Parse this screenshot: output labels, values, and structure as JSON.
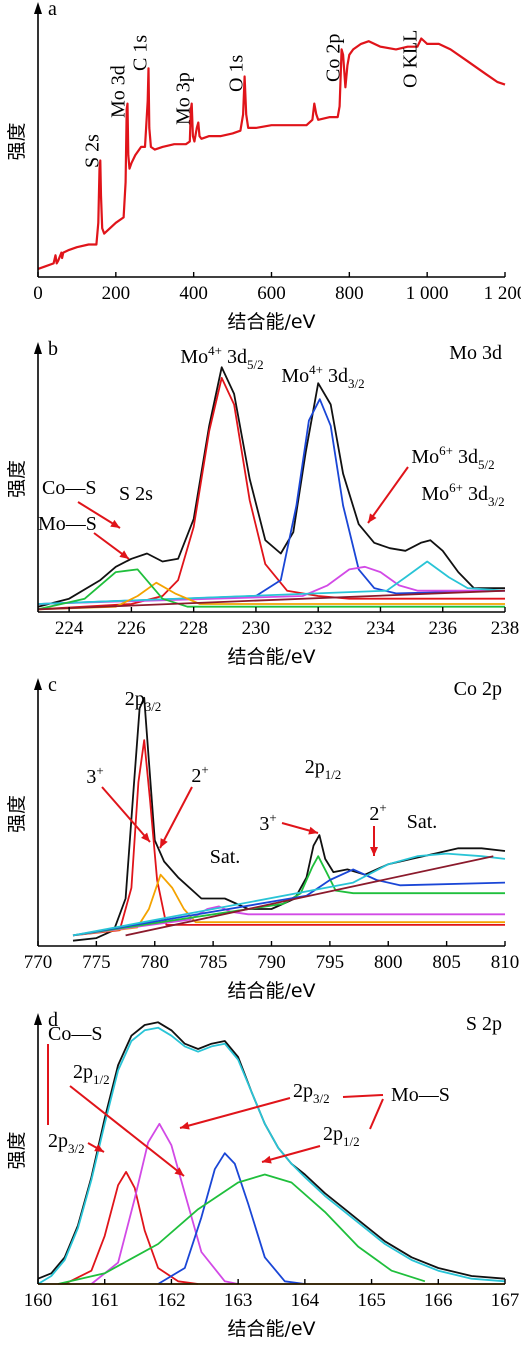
{
  "chart_data": [
    {
      "panel": "a",
      "type": "line",
      "xlabel": "结合能/eV",
      "ylabel": "强度",
      "xlim": [
        0,
        1200
      ],
      "ylim": [
        0,
        100
      ],
      "xticks": [
        0,
        200,
        400,
        600,
        800,
        1000,
        1200
      ],
      "xtick_labels": [
        "0",
        "200",
        "400",
        "600",
        "800",
        "1 000",
        "1 200"
      ],
      "peak_labels": [
        {
          "text": "S 2s",
          "x": 160
        },
        {
          "text": "Mo 3d",
          "x": 228
        },
        {
          "text": "C 1s",
          "x": 284
        },
        {
          "text": "Mo 3p",
          "x": 395
        },
        {
          "text": "O 1s",
          "x": 531
        },
        {
          "text": "Co 2p",
          "x": 780
        },
        {
          "text": "O KLL",
          "x": 978
        }
      ],
      "series": [
        {
          "color": "#e0141a",
          "x": [
            0,
            20,
            40,
            45,
            48,
            52,
            60,
            62,
            65,
            80,
            100,
            130,
            150,
            155,
            158,
            160,
            162,
            165,
            170,
            200,
            220,
            225,
            228,
            230,
            232,
            235,
            240,
            250,
            265,
            275,
            282,
            284,
            286,
            290,
            300,
            320,
            350,
            380,
            390,
            393,
            395,
            398,
            402,
            408,
            412,
            415,
            420,
            440,
            470,
            500,
            520,
            527,
            531,
            535,
            540,
            560,
            600,
            650,
            690,
            705,
            710,
            715,
            720,
            750,
            770,
            775,
            780,
            784,
            790,
            795,
            800,
            810,
            830,
            850,
            880,
            920,
            950,
            975,
            985,
            1000,
            1030,
            1060,
            1100,
            1150,
            1180,
            1200
          ],
          "y": [
            3,
            4,
            5,
            8,
            5,
            6,
            9,
            7,
            9,
            10,
            11,
            12,
            12,
            20,
            40,
            43,
            30,
            18,
            16,
            20,
            22,
            35,
            62,
            64,
            45,
            40,
            42,
            45,
            48,
            48,
            65,
            77,
            55,
            48,
            47,
            48,
            49,
            49,
            50,
            62,
            64,
            52,
            50,
            55,
            57,
            52,
            51,
            52,
            52,
            53,
            54,
            60,
            74,
            60,
            55,
            55,
            56,
            56,
            56,
            58,
            64,
            60,
            58,
            59,
            59,
            63,
            84,
            82,
            70,
            78,
            82,
            84,
            86,
            87,
            85,
            84,
            85,
            85,
            88,
            86,
            86,
            84,
            80,
            75,
            72,
            71
          ]
        }
      ]
    },
    {
      "panel": "b",
      "type": "line",
      "title": "Mo 3d",
      "xlabel": "结合能/eV",
      "ylabel": "强度",
      "xlim": [
        223,
        238
      ],
      "ylim": [
        0,
        100
      ],
      "xticks": [
        224,
        226,
        228,
        230,
        232,
        234,
        236,
        238
      ],
      "annotations": [
        {
          "base": "Mo",
          "sup": "4+",
          "rest": " 3d",
          "sub": "5/2"
        },
        {
          "base": "Mo",
          "sup": "4+",
          "rest": " 3d",
          "sub": "3/2"
        },
        {
          "base": "Mo",
          "sup": "6+",
          "rest": " 3d",
          "sub": "5/2"
        },
        {
          "base": "Mo",
          "sup": "6+",
          "rest": " 3d",
          "sub": "3/2"
        },
        {
          "text": "Co—S"
        },
        {
          "text": "S 2s"
        },
        {
          "text": "Mo—S"
        }
      ],
      "series": [
        {
          "color": "#111111",
          "x": [
            223,
            224,
            225,
            225.5,
            226,
            226.5,
            227,
            227.5,
            228,
            228.5,
            228.9,
            229.3,
            229.8,
            230.3,
            230.8,
            231.2,
            231.6,
            232,
            232.4,
            232.8,
            233.3,
            233.8,
            234.3,
            234.8,
            235.3,
            235.6,
            236,
            236.5,
            237,
            238
          ],
          "y": [
            2,
            5,
            12,
            17,
            20,
            22,
            19,
            20,
            35,
            70,
            92,
            82,
            50,
            27,
            22,
            30,
            60,
            86,
            78,
            52,
            33,
            26,
            24,
            23,
            26,
            27,
            23,
            15,
            9,
            9
          ]
        },
        {
          "color": "#e0141a",
          "x": [
            223,
            226,
            227,
            227.5,
            228,
            228.5,
            228.9,
            229.3,
            229.8,
            230.3,
            231,
            232,
            233,
            238
          ],
          "y": [
            1,
            3,
            6,
            12,
            32,
            68,
            88,
            78,
            42,
            18,
            8,
            6,
            5,
            5
          ]
        },
        {
          "color": "#1a46d6",
          "x": [
            223,
            230,
            230.8,
            231.3,
            231.7,
            232.05,
            232.4,
            232.8,
            233.3,
            233.8,
            234.5,
            238
          ],
          "y": [
            3,
            6,
            12,
            40,
            72,
            80,
            70,
            40,
            16,
            9,
            7,
            8
          ]
        },
        {
          "color": "#d24ae6",
          "x": [
            223,
            231.5,
            232.3,
            233,
            233.5,
            234,
            234.6,
            235.2,
            238
          ],
          "y": [
            3,
            6,
            10,
            16,
            17,
            15,
            10,
            8,
            8
          ]
        },
        {
          "color": "#29c4d6",
          "x": [
            223,
            234.2,
            234.8,
            235.5,
            236.2,
            236.8,
            238
          ],
          "y": [
            3,
            8,
            13,
            19,
            13,
            9,
            8
          ]
        },
        {
          "color": "#f4a300",
          "x": [
            223,
            225.5,
            226.2,
            226.8,
            227.4,
            228.2,
            238
          ],
          "y": [
            1,
            2,
            6,
            11,
            7,
            3,
            3
          ]
        },
        {
          "color": "#1fbf3c",
          "x": [
            223,
            224.5,
            225.5,
            226.2,
            227,
            227.8,
            238
          ],
          "y": [
            1,
            5,
            15,
            16,
            5,
            2,
            2
          ]
        },
        {
          "color": "#8b1a2c",
          "x": [
            223,
            238
          ],
          "y": [
            1,
            8
          ]
        }
      ]
    },
    {
      "panel": "c",
      "type": "line",
      "title": "Co 2p",
      "xlabel": "结合能/eV",
      "ylabel": "强度",
      "xlim": [
        770,
        810
      ],
      "ylim": [
        0,
        100
      ],
      "xticks": [
        770,
        775,
        780,
        785,
        790,
        795,
        800,
        805,
        810
      ],
      "annotations": [
        {
          "base": "2p",
          "sub": "3/2"
        },
        {
          "base": "3",
          "sup": "+"
        },
        {
          "base": "2",
          "sup": "+"
        },
        {
          "text": "Sat."
        },
        {
          "base": "2p",
          "sub": "1/2"
        },
        {
          "base": "3",
          "sup": "+"
        },
        {
          "base": "2",
          "sup": "+"
        },
        {
          "text": "Sat."
        }
      ],
      "series": [
        {
          "color": "#111111",
          "x": [
            773,
            775,
            776.5,
            777.5,
            778.2,
            778.7,
            779.1,
            779.5,
            780,
            780.8,
            782,
            784,
            786,
            788,
            790,
            792,
            793,
            793.6,
            794.1,
            794.6,
            795.3,
            796.5,
            798,
            800,
            802,
            804,
            806,
            808,
            810
          ],
          "y": [
            2,
            3,
            6,
            18,
            60,
            90,
            94,
            70,
            40,
            32,
            26,
            18,
            18,
            14,
            14,
            18,
            26,
            38,
            42,
            33,
            28,
            29,
            27,
            31,
            33,
            35,
            37,
            37,
            36
          ]
        },
        {
          "color": "#e0141a",
          "x": [
            773,
            777,
            778,
            778.6,
            779.1,
            779.6,
            780.2,
            781,
            810
          ],
          "y": [
            4,
            6,
            22,
            62,
            78,
            55,
            25,
            8,
            8
          ]
        },
        {
          "color": "#f4a300",
          "x": [
            773,
            778.5,
            779.5,
            780.5,
            781.5,
            782.5,
            783.5,
            810
          ],
          "y": [
            4,
            7,
            14,
            27,
            22,
            14,
            9,
            9
          ]
        },
        {
          "color": "#d24ae6",
          "x": [
            773,
            783,
            784.5,
            785.5,
            786.5,
            788,
            810
          ],
          "y": [
            4,
            10,
            14,
            15,
            13,
            12,
            12
          ]
        },
        {
          "color": "#1fbf3c",
          "x": [
            773,
            791,
            792.5,
            793.5,
            794,
            794.7,
            795.5,
            797,
            810
          ],
          "y": [
            4,
            16,
            20,
            30,
            34,
            28,
            21,
            20,
            20
          ]
        },
        {
          "color": "#1a46d6",
          "x": [
            773,
            793,
            795,
            797,
            799,
            801,
            810
          ],
          "y": [
            4,
            19,
            25,
            29,
            25,
            23,
            24
          ]
        },
        {
          "color": "#29c4d6",
          "x": [
            773,
            797,
            800,
            802.5,
            805,
            808,
            810
          ],
          "y": [
            4,
            24,
            31,
            34,
            35,
            34,
            33
          ]
        },
        {
          "color": "#8b1a2c",
          "x": [
            777.5,
            809
          ],
          "y": [
            4,
            34
          ]
        }
      ]
    },
    {
      "panel": "d",
      "type": "line",
      "title": "S 2p",
      "xlabel": "结合能/eV",
      "ylabel": "强度",
      "xlim": [
        160,
        167
      ],
      "ylim": [
        0,
        100
      ],
      "xticks": [
        160,
        161,
        162,
        163,
        164,
        165,
        166,
        167
      ],
      "annotations": [
        {
          "text": "Co—S"
        },
        {
          "base": "2p",
          "sub": "1/2"
        },
        {
          "base": "2p",
          "sub": "3/2"
        },
        {
          "base": "2p",
          "sub": "3/2"
        },
        {
          "base": "2p",
          "sub": "1/2"
        },
        {
          "text": "Mo—S"
        }
      ],
      "series": [
        {
          "color": "#111111",
          "x": [
            160,
            160.2,
            160.4,
            160.6,
            160.8,
            161,
            161.2,
            161.4,
            161.6,
            161.8,
            162,
            162.2,
            162.4,
            162.6,
            162.8,
            163,
            163.2,
            163.4,
            163.6,
            163.8,
            164,
            164.3,
            164.6,
            164.9,
            165.2,
            165.6,
            166,
            166.5,
            167
          ],
          "y": [
            2,
            4,
            10,
            22,
            40,
            62,
            82,
            93,
            97,
            98,
            95,
            90,
            88,
            90,
            91,
            85,
            72,
            60,
            51,
            45,
            41,
            34,
            28,
            22,
            16,
            10,
            6,
            3,
            2
          ]
        },
        {
          "color": "#e0141a",
          "x": [
            160.4,
            160.8,
            161,
            161.2,
            161.32,
            161.45,
            161.6,
            161.8,
            162.1,
            162.4
          ],
          "y": [
            0,
            5,
            18,
            37,
            42,
            36,
            20,
            6,
            1,
            0
          ]
        },
        {
          "color": "#d24ae6",
          "x": [
            160.8,
            161.2,
            161.45,
            161.65,
            161.82,
            162,
            162.2,
            162.45,
            162.8,
            163
          ],
          "y": [
            0,
            8,
            32,
            53,
            60,
            52,
            34,
            12,
            1,
            0
          ]
        },
        {
          "color": "#1a46d6",
          "x": [
            161.8,
            162.2,
            162.45,
            162.65,
            162.8,
            162.95,
            163.15,
            163.4,
            163.7,
            164
          ],
          "y": [
            0,
            6,
            25,
            43,
            49,
            45,
            30,
            10,
            1,
            0
          ]
        },
        {
          "color": "#1fbf3c",
          "x": [
            160.3,
            161,
            161.8,
            162.4,
            163,
            163.4,
            163.8,
            164.3,
            164.8,
            165.3,
            165.8
          ],
          "y": [
            0,
            4,
            15,
            28,
            38,
            41,
            38,
            27,
            14,
            5,
            1
          ]
        },
        {
          "color": "#29c4d6",
          "x": [
            160,
            160.2,
            160.4,
            160.6,
            160.8,
            161,
            161.2,
            161.4,
            161.6,
            161.8,
            162,
            162.2,
            162.4,
            162.6,
            162.8,
            163,
            163.2,
            163.4,
            163.6,
            163.8,
            164,
            164.3,
            164.6,
            164.9,
            165.2,
            165.6,
            166,
            166.5,
            167
          ],
          "y": [
            0,
            3,
            9,
            21,
            39,
            60,
            80,
            91,
            95,
            96,
            93,
            89,
            87,
            89,
            90,
            84,
            72,
            60,
            51,
            45,
            40,
            33,
            27,
            21,
            15,
            9,
            5,
            2,
            1
          ]
        },
        {
          "color": "#f4a300",
          "x": [
            160,
            167
          ],
          "y": [
            0,
            0
          ]
        }
      ]
    }
  ]
}
